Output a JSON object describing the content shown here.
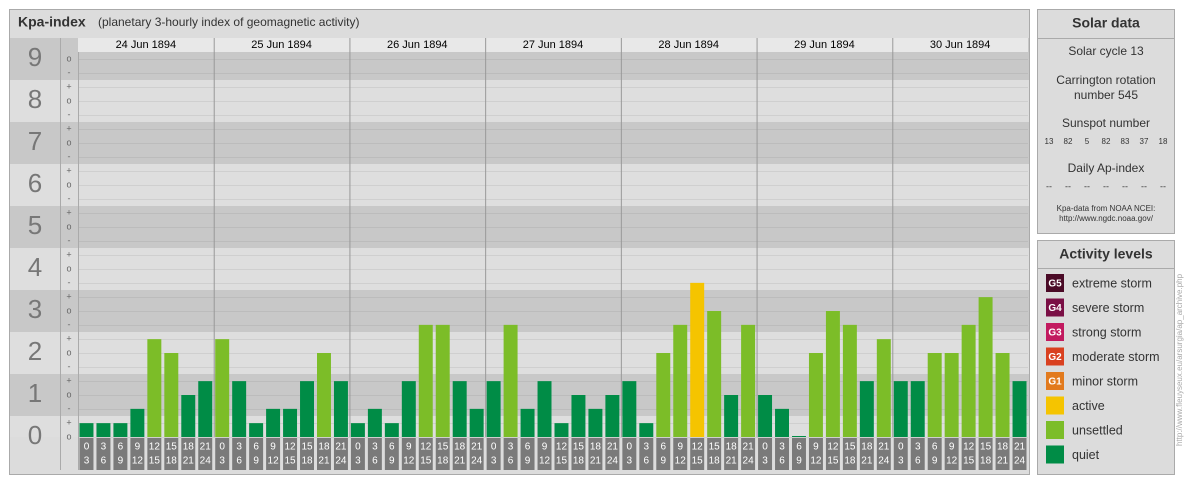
{
  "header": {
    "title": "Kpa-index",
    "subtitle": "(planetary 3-hourly index of geomagnetic activity)"
  },
  "chart_data": {
    "type": "bar",
    "days": [
      "24 Jun 1894",
      "25 Jun 1894",
      "26 Jun 1894",
      "27 Jun 1894",
      "28 Jun 1894",
      "29 Jun 1894",
      "30 Jun 1894"
    ],
    "intervals": [
      [
        "0",
        "3"
      ],
      [
        "3",
        "6"
      ],
      [
        "6",
        "9"
      ],
      [
        "9",
        "12"
      ],
      [
        "12",
        "15"
      ],
      [
        "15",
        "18"
      ],
      [
        "18",
        "21"
      ],
      [
        "21",
        "24"
      ]
    ],
    "values": [
      0.33,
      0.33,
      0.33,
      0.67,
      2.33,
      2,
      1,
      1.33,
      2.33,
      1.33,
      0.33,
      0.67,
      0.67,
      1.33,
      2,
      1.33,
      0.33,
      0.67,
      0.33,
      1.33,
      2.67,
      2.67,
      1.33,
      0.67,
      1.33,
      2.67,
      0.67,
      1.33,
      0.33,
      1,
      0.67,
      1,
      1.33,
      0.33,
      2,
      2.67,
      3.67,
      3,
      1,
      2.67,
      1,
      0.67,
      0,
      2,
      3,
      2.67,
      1.33,
      2.33,
      1.33,
      1.33,
      2,
      2,
      2.67,
      3.33,
      2,
      1.33
    ],
    "colors": [
      "#008c46",
      "#008c46",
      "#008c46",
      "#008c46",
      "#7cbd28",
      "#7cbd28",
      "#008c46",
      "#008c46",
      "#7cbd28",
      "#008c46",
      "#008c46",
      "#008c46",
      "#008c46",
      "#008c46",
      "#7cbd28",
      "#008c46",
      "#008c46",
      "#008c46",
      "#008c46",
      "#008c46",
      "#7cbd28",
      "#7cbd28",
      "#008c46",
      "#008c46",
      "#008c46",
      "#7cbd28",
      "#008c46",
      "#008c46",
      "#008c46",
      "#008c46",
      "#008c46",
      "#008c46",
      "#008c46",
      "#008c46",
      "#7cbd28",
      "#7cbd28",
      "#f5c400",
      "#7cbd28",
      "#008c46",
      "#7cbd28",
      "#008c46",
      "#008c46",
      "#008c46",
      "#7cbd28",
      "#7cbd28",
      "#7cbd28",
      "#008c46",
      "#7cbd28",
      "#008c46",
      "#008c46",
      "#7cbd28",
      "#7cbd28",
      "#7cbd28",
      "#7cbd28",
      "#7cbd28",
      "#008c46"
    ],
    "ylim": [
      0,
      9.5
    ],
    "yticks": [
      0,
      1,
      2,
      3,
      4,
      5,
      6,
      7,
      8,
      9
    ],
    "minor_labels": [
      "-",
      "o",
      "+"
    ]
  },
  "solar": {
    "title": "Solar data",
    "cycle": "Solar cycle 13",
    "carrington": [
      "Carrington rotation",
      "number 545"
    ],
    "sunspot_title": "Sunspot number",
    "sunspots": [
      13,
      82,
      5,
      82,
      83,
      37,
      18
    ],
    "ap_title": "Daily Ap-index",
    "ap": [
      "--",
      "--",
      "--",
      "--",
      "--",
      "--",
      "--"
    ],
    "source": [
      "Kpa-data from NOAA NCEI:",
      "http://www.ngdc.noaa.gov/"
    ]
  },
  "levels": {
    "title": "Activity levels",
    "items": [
      {
        "code": "G5",
        "name": "extreme storm",
        "color": "#4a0a26"
      },
      {
        "code": "G4",
        "name": "severe storm",
        "color": "#7a0f45"
      },
      {
        "code": "G3",
        "name": "strong storm",
        "color": "#c21a5f"
      },
      {
        "code": "G2",
        "name": "moderate storm",
        "color": "#d9401f"
      },
      {
        "code": "G1",
        "name": "minor storm",
        "color": "#e27a1d"
      },
      {
        "name": "active",
        "color": "#f5c400"
      },
      {
        "name": "unsettled",
        "color": "#7cbd28"
      },
      {
        "name": "quiet",
        "color": "#008c46"
      }
    ]
  },
  "credit": "http://www.fleuyseux.eu/arsurgia/ap_archive.php"
}
